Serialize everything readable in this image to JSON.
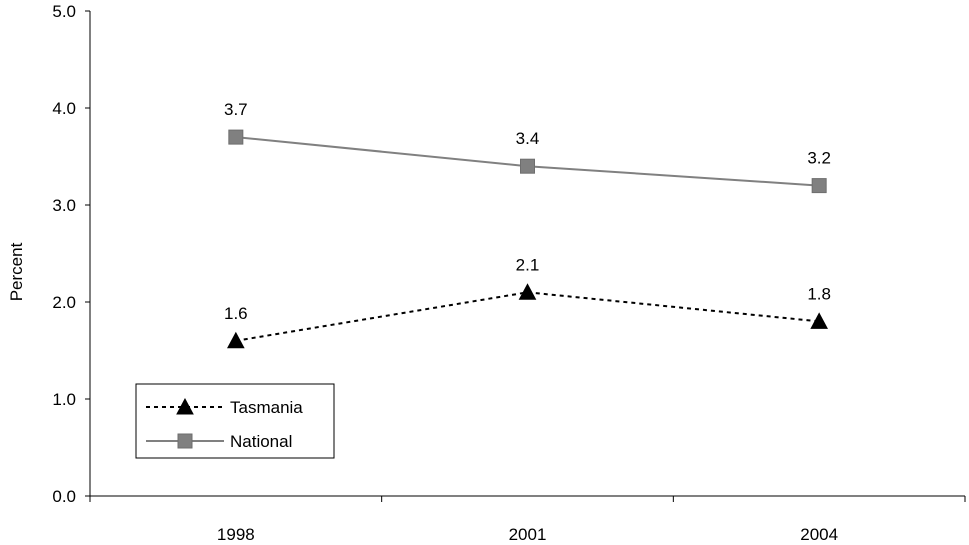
{
  "chart_data": {
    "type": "line",
    "ylabel": "Percent",
    "xlabel": "",
    "categories": [
      "1998",
      "2001",
      "2004"
    ],
    "ylim": [
      0,
      5
    ],
    "yticks": [
      "0.0",
      "1.0",
      "2.0",
      "3.0",
      "4.0",
      "5.0"
    ],
    "grid": false,
    "legend_position": "bottom-left",
    "series": [
      {
        "name": "Tasmania",
        "values": [
          1.6,
          2.1,
          1.8
        ],
        "labels": [
          "1.6",
          "2.1",
          "1.8"
        ],
        "marker": "triangle",
        "line_style": "dotted",
        "color": "#000000"
      },
      {
        "name": "National",
        "values": [
          3.7,
          3.4,
          3.2
        ],
        "labels": [
          "3.7",
          "3.4",
          "3.2"
        ],
        "marker": "square",
        "line_style": "solid",
        "color": "#808080"
      }
    ]
  }
}
